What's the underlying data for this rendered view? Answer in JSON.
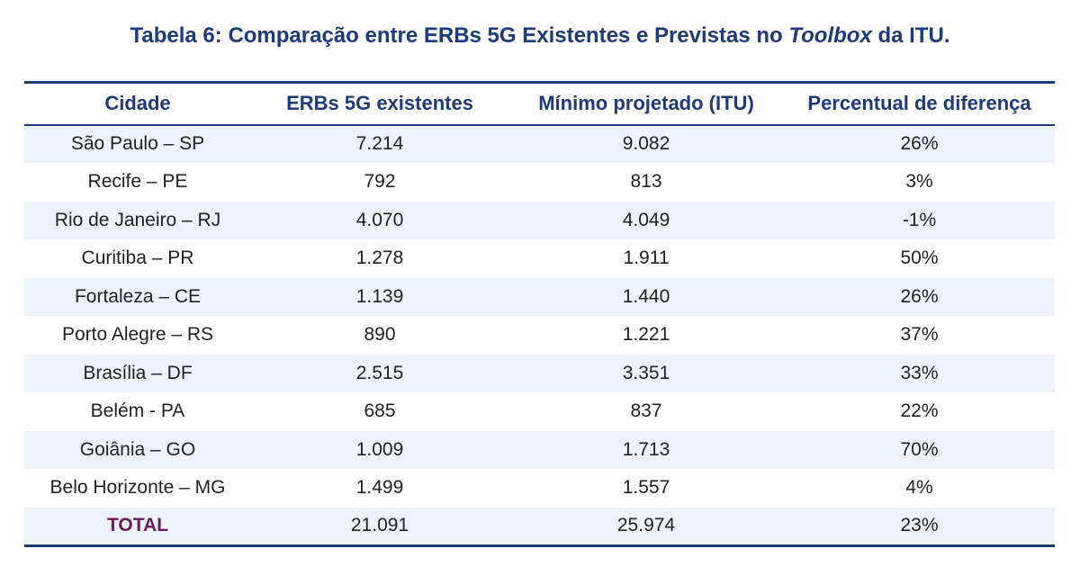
{
  "caption": {
    "prefix": "Tabela 6: Comparação entre ERBs 5G Existentes e Previstas no ",
    "emphasis": "Toolbox",
    "suffix": " da ITU."
  },
  "table": {
    "headers": [
      "Cidade",
      "ERBs 5G existentes",
      "Mínimo projetado (ITU)",
      "Percentual de diferença"
    ],
    "rows": [
      [
        "São Paulo – SP",
        "7.214",
        "9.082",
        "26%"
      ],
      [
        "Recife – PE",
        "792",
        "813",
        "3%"
      ],
      [
        "Rio de Janeiro – RJ",
        "4.070",
        "4.049",
        "-1%"
      ],
      [
        "Curitiba – PR",
        "1.278",
        "1.911",
        "50%"
      ],
      [
        "Fortaleza – CE",
        "1.139",
        "1.440",
        "26%"
      ],
      [
        "Porto Alegre – RS",
        "890",
        "1.221",
        "37%"
      ],
      [
        "Brasília – DF",
        "2.515",
        "3.351",
        "33%"
      ],
      [
        "Belém - PA",
        "685",
        "837",
        "22%"
      ],
      [
        "Goiânia – GO",
        "1.009",
        "1.713",
        "70%"
      ],
      [
        "Belo Horizonte – MG",
        "1.499",
        "1.557",
        "4%"
      ]
    ],
    "total": [
      "TOTAL",
      "21.091",
      "25.974",
      "23%"
    ]
  },
  "colors": {
    "header_text": "#1f3a7a",
    "total_label": "#6a1d5a",
    "row_alt_bg": "#eef2fa",
    "rule": "#1f3a7a"
  }
}
